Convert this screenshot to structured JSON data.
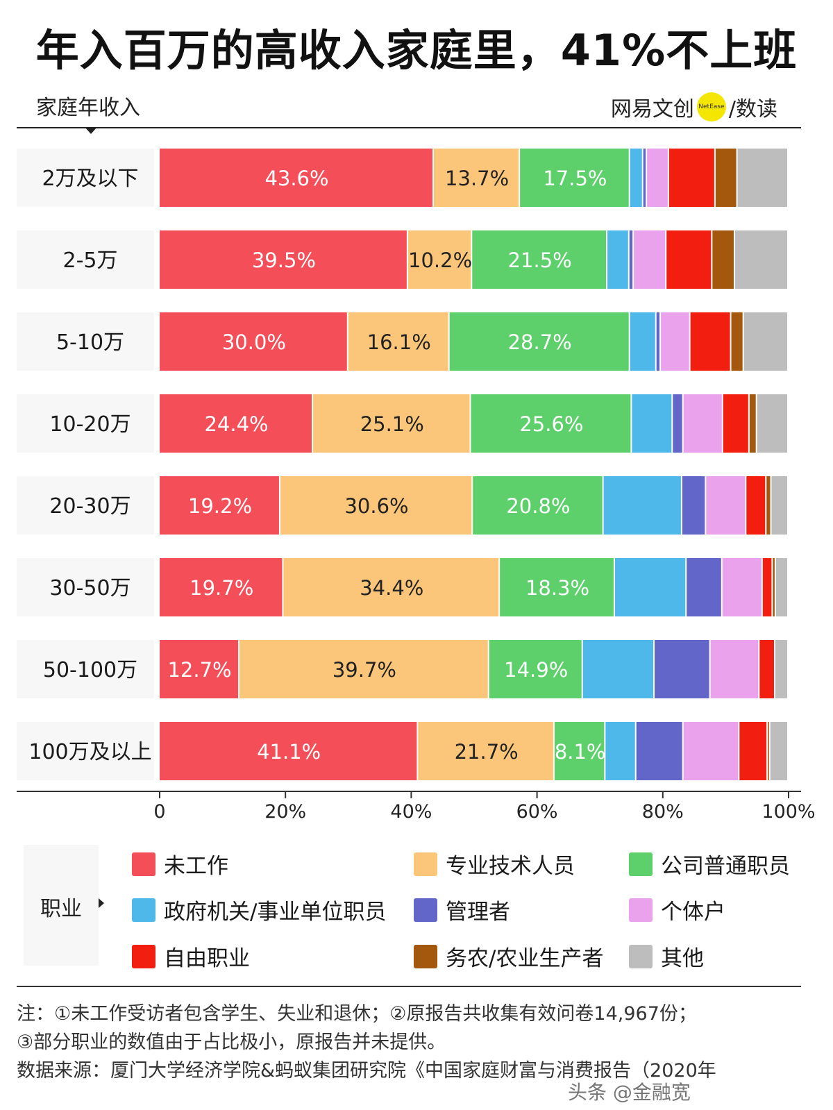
{
  "header": {
    "title": "年入百万的高收入家庭里，41%不上班",
    "subtitle": "家庭年收入",
    "brand_left": "网易文创",
    "brand_logo": "NetEase",
    "brand_right": "/数读"
  },
  "chart_data": {
    "type": "bar",
    "orientation": "horizontal",
    "stacked": true,
    "normalized": true,
    "categories": [
      "2万及以下",
      "2-5万",
      "5-10万",
      "10-20万",
      "20-30万",
      "30-50万",
      "50-100万",
      "100万及以上"
    ],
    "series": [
      {
        "name": "未工作",
        "color": "#f44f58",
        "values": [
          43.6,
          39.5,
          30.0,
          24.4,
          19.2,
          19.7,
          12.7,
          41.1
        ],
        "labels": [
          "43.6%",
          "39.5%",
          "30.0%",
          "24.4%",
          "19.2%",
          "19.7%",
          "12.7%",
          "41.1%"
        ],
        "label_color": "#ffffff"
      },
      {
        "name": "专业技术人员",
        "color": "#fbc57a",
        "values": [
          13.7,
          10.2,
          16.1,
          25.1,
          30.6,
          34.4,
          39.7,
          21.7
        ],
        "labels": [
          "13.7%",
          "10.2%",
          "16.1%",
          "25.1%",
          "30.6%",
          "34.4%",
          "39.7%",
          "21.7%"
        ],
        "label_color": "#222222"
      },
      {
        "name": "公司普通职员",
        "color": "#5ed06b",
        "values": [
          17.5,
          21.5,
          28.7,
          25.6,
          20.8,
          18.3,
          14.9,
          8.1
        ],
        "labels": [
          "17.5%",
          "21.5%",
          "28.7%",
          "25.6%",
          "20.8%",
          "18.3%",
          "14.9%",
          "8.1%"
        ],
        "label_color": "#ffffff"
      },
      {
        "name": "政府机关/事业单位职员",
        "color": "#4eb8ea",
        "values": [
          2.1,
          3.5,
          4.2,
          6.5,
          12.5,
          11.4,
          11.4,
          4.9
        ]
      },
      {
        "name": "管理者",
        "color": "#6266c9",
        "values": [
          0.6,
          0.7,
          0.7,
          1.7,
          3.8,
          5.7,
          8.9,
          7.5
        ]
      },
      {
        "name": "个体户",
        "color": "#eaa2ec",
        "values": [
          3.5,
          5.2,
          4.7,
          6.3,
          6.4,
          6.4,
          7.8,
          8.9
        ]
      },
      {
        "name": "自由职业",
        "color": "#f21e0f",
        "values": [
          7.4,
          7.3,
          6.5,
          4.2,
          3.2,
          1.6,
          2.5,
          4.5
        ]
      },
      {
        "name": "务农/农业生产者",
        "color": "#a4580e",
        "values": [
          3.5,
          3.6,
          2.0,
          1.2,
          0.8,
          0.5,
          0.0,
          0.4
        ]
      },
      {
        "name": "其他",
        "color": "#bdbdbd",
        "values": [
          8.1,
          8.5,
          7.1,
          5.0,
          2.7,
          2.0,
          2.1,
          2.9
        ]
      }
    ],
    "xaxis": {
      "range": [
        0,
        100
      ],
      "ticks": [
        "0",
        "20%",
        "40%",
        "60%",
        "80%",
        "100%"
      ],
      "tick_values": [
        0,
        20,
        40,
        60,
        80,
        100
      ]
    },
    "legend_title": "职业",
    "legend_position": "bottom"
  },
  "notes": {
    "line1": "注：①未工作受访者包含学生、失业和退休；②原报告共收集有效问卷14,967份；",
    "line2": "③部分职业的数值由于占比极小，原报告并未提供。",
    "source": "数据来源：厦门大学经济学院&蚂蚁集团研究院《中国家庭财富与消费报告（2020年",
    "watermark": "头条 @金融宽"
  }
}
